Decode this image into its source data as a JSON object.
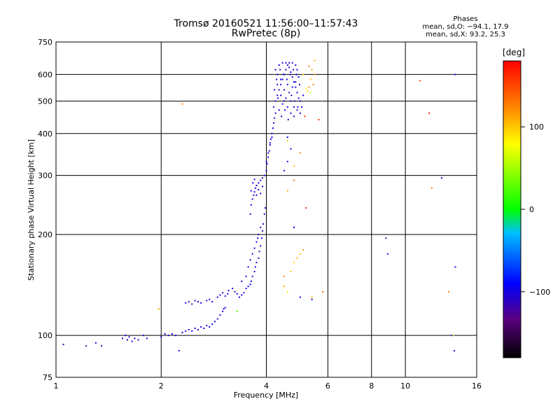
{
  "header": {
    "title_line1": "Tromsø 20160521 11:56:00–11:57:43",
    "title_line2": "RwPretec (8p)",
    "phases_label": "Phases",
    "phase_o": "mean, sd,O: −94.1, 17.9",
    "phase_x": "mean, sd,X: 93.2, 25.3"
  },
  "colorbar": {
    "unit": "deg",
    "ticks": [
      {
        "value": 100,
        "label": "100"
      },
      {
        "value": 0,
        "label": "0"
      },
      {
        "value": -100,
        "label": "−100"
      }
    ],
    "range": [
      -180,
      180
    ],
    "colors": [
      "#000000",
      "#5a0080",
      "#0000ff",
      "#00bfff",
      "#00ff00",
      "#ffff00",
      "#ff8000",
      "#ff0000"
    ]
  },
  "chart_data": {
    "type": "scatter",
    "title": "Tromsø 20160521 11:56:00–11:57:43 RwPretec (8p)",
    "xlabel": "Frequency [MHz]",
    "ylabel": "Stationary phase Virtual Height [km]",
    "xscale": "log",
    "yscale": "log",
    "xlim": [
      1,
      16
    ],
    "ylim": [
      75,
      750
    ],
    "grid": true,
    "xticks": [
      {
        "value": 1,
        "label": "1"
      },
      {
        "value": 2,
        "label": "2"
      },
      {
        "value": 4,
        "label": "4"
      },
      {
        "value": 6,
        "label": "6"
      },
      {
        "value": 8,
        "label": "8"
      },
      {
        "value": 10,
        "label": "10"
      },
      {
        "value": 16,
        "label": "16"
      }
    ],
    "yticks": [
      {
        "value": 75,
        "label": "75"
      },
      {
        "value": 100,
        "label": "100"
      },
      {
        "value": 200,
        "label": "200"
      },
      {
        "value": 300,
        "label": "300"
      },
      {
        "value": 400,
        "label": "400"
      },
      {
        "value": 500,
        "label": "500"
      },
      {
        "value": 600,
        "label": "600"
      },
      {
        "value": 750,
        "label": "750"
      }
    ],
    "point_color": "phase [deg]",
    "series": [
      {
        "name": "O",
        "points": [
          [
            1.05,
            94,
            -105
          ],
          [
            1.22,
            93,
            -110
          ],
          [
            1.3,
            95,
            -100
          ],
          [
            1.35,
            93,
            -115
          ],
          [
            1.55,
            98,
            -105
          ],
          [
            1.58,
            100,
            -95
          ],
          [
            1.6,
            97,
            -110
          ],
          [
            1.62,
            99,
            -100
          ],
          [
            1.65,
            96,
            -100
          ],
          [
            1.68,
            98,
            -95
          ],
          [
            1.72,
            97,
            -110
          ],
          [
            1.78,
            100,
            -100
          ],
          [
            1.82,
            98,
            -105
          ],
          [
            2.0,
            99,
            -100
          ],
          [
            2.05,
            101,
            -90
          ],
          [
            2.1,
            100,
            -110
          ],
          [
            2.15,
            101,
            -100
          ],
          [
            2.2,
            100,
            -95
          ],
          [
            2.3,
            102,
            -100
          ],
          [
            2.35,
            103,
            -100
          ],
          [
            2.4,
            104,
            -110
          ],
          [
            2.45,
            103,
            -95
          ],
          [
            2.5,
            105,
            -100
          ],
          [
            2.55,
            104,
            -105
          ],
          [
            2.6,
            106,
            -100
          ],
          [
            2.65,
            105,
            -100
          ],
          [
            2.7,
            107,
            -110
          ],
          [
            2.75,
            106,
            -95
          ],
          [
            2.8,
            108,
            -100
          ],
          [
            2.85,
            110,
            -100
          ],
          [
            2.9,
            112,
            -105
          ],
          [
            2.95,
            115,
            -100
          ],
          [
            3.0,
            118,
            -90
          ],
          [
            3.02,
            120,
            -100
          ],
          [
            3.05,
            121,
            -105
          ],
          [
            2.25,
            90,
            -100
          ],
          [
            2.35,
            125,
            -95
          ],
          [
            2.4,
            126,
            -100
          ],
          [
            2.45,
            124,
            -110
          ],
          [
            2.5,
            127,
            -100
          ],
          [
            2.55,
            126,
            -95
          ],
          [
            2.6,
            125,
            -100
          ],
          [
            2.7,
            127,
            -105
          ],
          [
            2.75,
            128,
            -100
          ],
          [
            2.8,
            126,
            -100
          ],
          [
            2.9,
            130,
            -90
          ],
          [
            2.95,
            132,
            -100
          ],
          [
            3.0,
            134,
            -105
          ],
          [
            3.05,
            131,
            -100
          ],
          [
            3.1,
            133,
            -95
          ],
          [
            3.12,
            136,
            -100
          ],
          [
            3.2,
            138,
            -100
          ],
          [
            3.25,
            135,
            -110
          ],
          [
            3.3,
            133,
            -100
          ],
          [
            3.35,
            130,
            -95
          ],
          [
            3.4,
            132,
            -100
          ],
          [
            3.45,
            134,
            -100
          ],
          [
            3.5,
            138,
            -105
          ],
          [
            3.55,
            140,
            -100
          ],
          [
            3.6,
            142,
            -90
          ],
          [
            3.62,
            145,
            -100
          ],
          [
            3.65,
            150,
            -105
          ],
          [
            3.7,
            155,
            -100
          ],
          [
            3.72,
            160,
            -95
          ],
          [
            3.75,
            165,
            -100
          ],
          [
            3.8,
            170,
            -100
          ],
          [
            3.82,
            178,
            -110
          ],
          [
            3.85,
            185,
            -100
          ],
          [
            3.88,
            195,
            -95
          ],
          [
            3.9,
            205,
            -100
          ],
          [
            3.92,
            215,
            -100
          ],
          [
            3.95,
            230,
            -105
          ],
          [
            3.97,
            240,
            -100
          ],
          [
            3.4,
            145,
            -100
          ],
          [
            3.5,
            150,
            -95
          ],
          [
            3.55,
            160,
            -100
          ],
          [
            3.6,
            168,
            -110
          ],
          [
            3.65,
            175,
            -100
          ],
          [
            3.7,
            182,
            -100
          ],
          [
            3.75,
            190,
            -95
          ],
          [
            3.78,
            195,
            -100
          ],
          [
            3.8,
            200,
            -105
          ],
          [
            3.85,
            210,
            -100
          ],
          [
            3.6,
            230,
            -100
          ],
          [
            3.62,
            245,
            -95
          ],
          [
            3.65,
            255,
            -100
          ],
          [
            3.68,
            262,
            -110
          ],
          [
            3.7,
            268,
            -100
          ],
          [
            3.72,
            275,
            -100
          ],
          [
            3.75,
            280,
            -95
          ],
          [
            3.8,
            285,
            -100
          ],
          [
            3.85,
            290,
            -100
          ],
          [
            3.9,
            295,
            -105
          ],
          [
            3.62,
            270,
            -100
          ],
          [
            3.66,
            285,
            -95
          ],
          [
            3.7,
            292,
            -100
          ],
          [
            3.75,
            262,
            -100
          ],
          [
            3.8,
            272,
            -110
          ],
          [
            3.85,
            265,
            -100
          ],
          [
            3.9,
            278,
            -95
          ],
          [
            3.95,
            300,
            -100
          ],
          [
            4.0,
            310,
            -100
          ],
          [
            4.02,
            325,
            -95
          ],
          [
            4.05,
            340,
            -100
          ],
          [
            4.08,
            355,
            -110
          ],
          [
            4.1,
            370,
            -100
          ],
          [
            4.12,
            385,
            -100
          ],
          [
            4.15,
            400,
            -95
          ],
          [
            4.18,
            415,
            -100
          ],
          [
            4.2,
            430,
            -100
          ],
          [
            4.22,
            445,
            -105
          ],
          [
            4.25,
            460,
            -100
          ],
          [
            4.05,
            350,
            -100
          ],
          [
            4.1,
            375,
            -95
          ],
          [
            4.15,
            390,
            -100
          ],
          [
            4.0,
            330,
            -100
          ],
          [
            4.2,
            480,
            -100
          ],
          [
            4.25,
            500,
            -95
          ],
          [
            4.3,
            520,
            -100
          ],
          [
            4.35,
            540,
            -110
          ],
          [
            4.4,
            560,
            -100
          ],
          [
            4.45,
            580,
            -100
          ],
          [
            4.5,
            600,
            -95
          ],
          [
            4.55,
            620,
            -100
          ],
          [
            4.6,
            640,
            -100
          ],
          [
            4.65,
            630,
            -105
          ],
          [
            4.7,
            610,
            -100
          ],
          [
            4.75,
            590,
            -100
          ],
          [
            4.8,
            570,
            -95
          ],
          [
            4.85,
            550,
            -100
          ],
          [
            4.9,
            530,
            -110
          ],
          [
            4.95,
            510,
            -100
          ],
          [
            5.0,
            500,
            -100
          ],
          [
            4.3,
            600,
            -95
          ],
          [
            4.4,
            520,
            -100
          ],
          [
            4.5,
            540,
            -100
          ],
          [
            4.6,
            560,
            -105
          ],
          [
            4.7,
            500,
            -100
          ],
          [
            4.8,
            480,
            -100
          ],
          [
            4.35,
            470,
            -95
          ],
          [
            4.45,
            490,
            -100
          ],
          [
            4.55,
            510,
            -100
          ],
          [
            4.65,
            530,
            -110
          ],
          [
            4.75,
            550,
            -100
          ],
          [
            4.85,
            570,
            -100
          ],
          [
            4.95,
            590,
            -95
          ],
          [
            4.25,
            620,
            -100
          ],
          [
            4.35,
            640,
            -100
          ],
          [
            4.45,
            650,
            -105
          ],
          [
            4.55,
            650,
            -100
          ],
          [
            4.65,
            650,
            -100
          ],
          [
            4.75,
            650,
            -95
          ],
          [
            4.85,
            640,
            -100
          ],
          [
            4.9,
            620,
            -100
          ],
          [
            4.3,
            560,
            -110
          ],
          [
            4.4,
            580,
            -100
          ],
          [
            4.5,
            500,
            -100
          ],
          [
            4.6,
            480,
            -95
          ],
          [
            4.7,
            460,
            -100
          ],
          [
            4.8,
            450,
            -100
          ],
          [
            4.9,
            470,
            -105
          ],
          [
            5.0,
            460,
            -100
          ],
          [
            5.05,
            480,
            -100
          ],
          [
            5.1,
            520,
            -95
          ],
          [
            4.22,
            540,
            -100
          ],
          [
            4.28,
            580,
            -100
          ],
          [
            4.38,
            620,
            -110
          ],
          [
            4.48,
            600,
            -100
          ],
          [
            4.58,
            580,
            -100
          ],
          [
            4.68,
            600,
            -95
          ],
          [
            4.78,
            620,
            -100
          ],
          [
            4.88,
            600,
            -100
          ],
          [
            4.98,
            560,
            -105
          ],
          [
            4.32,
            510,
            -100
          ],
          [
            4.42,
            450,
            -100
          ],
          [
            4.52,
            470,
            -95
          ],
          [
            4.62,
            440,
            -100
          ],
          [
            4.72,
            520,
            -100
          ],
          [
            4.82,
            500,
            -110
          ],
          [
            4.92,
            480,
            -100
          ],
          [
            4.6,
            390,
            -95
          ],
          [
            4.7,
            360,
            -100
          ],
          [
            4.6,
            330,
            -90
          ],
          [
            4.5,
            310,
            -100
          ],
          [
            4.8,
            210,
            -100
          ],
          [
            5.0,
            130,
            -100
          ],
          [
            5.4,
            128,
            -100
          ],
          [
            8.8,
            195,
            -110
          ],
          [
            8.9,
            175,
            -100
          ],
          [
            12.7,
            295,
            -100
          ],
          [
            13.6,
            100,
            -95
          ],
          [
            13.8,
            90,
            -100
          ],
          [
            13.9,
            160,
            -100
          ],
          [
            13.9,
            600,
            -100
          ]
        ]
      },
      {
        "name": "X",
        "points": [
          [
            1.97,
            120,
            110
          ],
          [
            2.3,
            490,
            120
          ],
          [
            3.3,
            118,
            20
          ],
          [
            4.5,
            140,
            110
          ],
          [
            4.6,
            135,
            90
          ],
          [
            4.5,
            150,
            120
          ],
          [
            4.7,
            155,
            100
          ],
          [
            4.8,
            165,
            90
          ],
          [
            4.9,
            170,
            110
          ],
          [
            5.0,
            175,
            100
          ],
          [
            5.1,
            180,
            120
          ],
          [
            4.8,
            290,
            130
          ],
          [
            4.6,
            270,
            110
          ],
          [
            4.8,
            320,
            100
          ],
          [
            5.0,
            350,
            130
          ],
          [
            4.6,
            380,
            100
          ],
          [
            5.3,
            635,
            130
          ],
          [
            5.4,
            620,
            110
          ],
          [
            5.5,
            600,
            120
          ],
          [
            5.35,
            580,
            100
          ],
          [
            5.45,
            560,
            130
          ],
          [
            5.3,
            550,
            120
          ],
          [
            5.2,
            545,
            90
          ],
          [
            5.25,
            535,
            100
          ],
          [
            5.35,
            530,
            60
          ],
          [
            5.5,
            660,
            110
          ],
          [
            5.1,
            600,
            100
          ],
          [
            5.2,
            240,
            170
          ],
          [
            5.15,
            450,
            160
          ],
          [
            5.4,
            130,
            110
          ],
          [
            5.8,
            135,
            140
          ],
          [
            5.65,
            440,
            160
          ],
          [
            11.0,
            575,
            150
          ],
          [
            11.7,
            460,
            170
          ],
          [
            11.9,
            275,
            130
          ],
          [
            13.3,
            135,
            130
          ],
          [
            13.7,
            100,
            60
          ]
        ]
      }
    ]
  }
}
